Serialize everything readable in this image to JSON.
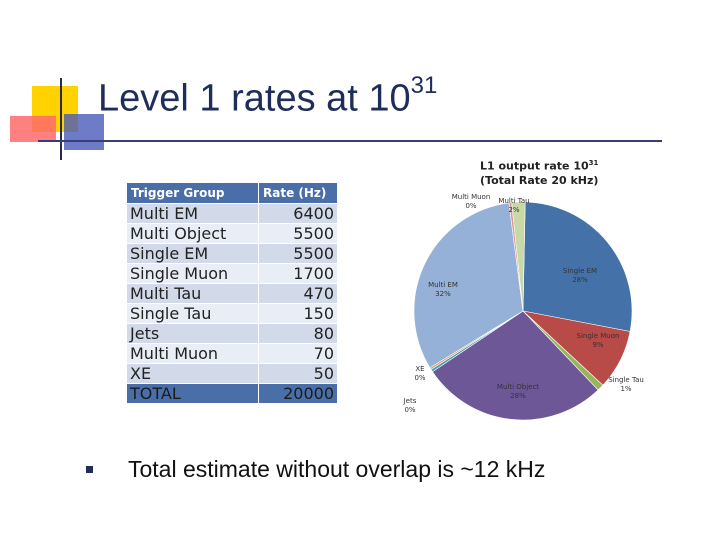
{
  "slide": {
    "title_text": "Level 1 rates at 10",
    "title_exponent": "31",
    "bullet_text": "Total estimate without overlap is ~12 kHz"
  },
  "table": {
    "headers": [
      "Trigger Group",
      "Rate (Hz)"
    ],
    "rows": [
      {
        "group": "Multi EM",
        "rate": "6400"
      },
      {
        "group": "Multi Object",
        "rate": "5500"
      },
      {
        "group": "Single EM",
        "rate": "5500"
      },
      {
        "group": "Single Muon",
        "rate": "1700"
      },
      {
        "group": "Multi Tau",
        "rate": "470"
      },
      {
        "group": "Single Tau",
        "rate": "150"
      },
      {
        "group": "Jets",
        "rate": "80"
      },
      {
        "group": "Multi Muon",
        "rate": "70"
      },
      {
        "group": "XE",
        "rate": "50"
      },
      {
        "group": "TOTAL",
        "rate": "20000"
      }
    ]
  },
  "chart_data": {
    "type": "pie",
    "title_line1": "L1 output rate 10",
    "title_exponent": "31",
    "title_line2": "(Total Rate 20 kHz)",
    "slices": [
      {
        "name": "Single EM",
        "label": "28%",
        "value": 28,
        "color": "#4472a8"
      },
      {
        "name": "Single Muon",
        "label": "9%",
        "value": 9,
        "color": "#b84a48"
      },
      {
        "name": "Single Tau",
        "label": "1%",
        "value": 1,
        "color": "#97b55a"
      },
      {
        "name": "Multi Object",
        "label": "28%",
        "value": 28,
        "color": "#6d5796"
      },
      {
        "name": "Jets",
        "label": "0%",
        "value": 0.4,
        "color": "#43a3c0"
      },
      {
        "name": "XE",
        "label": "0%",
        "value": 0.3,
        "color": "#e8964a"
      },
      {
        "name": "Multi EM",
        "label": "32%",
        "value": 32,
        "color": "#95b1d8"
      },
      {
        "name": "Multi Muon",
        "label": "0%",
        "value": 0.4,
        "color": "#d99795"
      },
      {
        "name": "Multi Tau",
        "label": "2%",
        "value": 2,
        "color": "#c8d9a5"
      }
    ]
  }
}
